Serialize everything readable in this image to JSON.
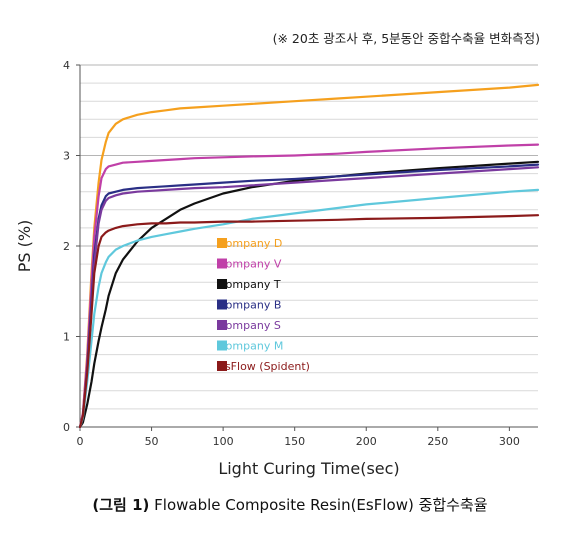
{
  "note": "(※ 20초 광조사 후, 5분동안 중합수축율 변화측정)",
  "caption": {
    "label": "(그림 1)",
    "text": "Flowable Composite Resin(EsFlow) 중합수축율"
  },
  "chart_data": {
    "type": "line",
    "title": "",
    "xlabel": "Light Curing Time(sec)",
    "ylabel": "PS (%)",
    "xlim": [
      0,
      320
    ],
    "ylim": [
      0,
      4
    ],
    "x_ticks": [
      0,
      50,
      100,
      150,
      200,
      250,
      300
    ],
    "y_ticks": [
      0,
      1,
      2,
      3,
      4
    ],
    "grid": "horizontal",
    "legend_position": "center-left",
    "x": [
      0,
      2,
      5,
      8,
      10,
      13,
      15,
      18,
      20,
      25,
      30,
      40,
      50,
      60,
      70,
      80,
      100,
      120,
      150,
      180,
      200,
      250,
      300,
      320
    ],
    "series": [
      {
        "name": "Company D",
        "color": "#f5a01e",
        "values": [
          0,
          0.15,
          0.8,
          1.7,
          2.2,
          2.7,
          2.95,
          3.15,
          3.25,
          3.35,
          3.4,
          3.45,
          3.48,
          3.5,
          3.52,
          3.53,
          3.55,
          3.57,
          3.6,
          3.63,
          3.65,
          3.7,
          3.75,
          3.78
        ]
      },
      {
        "name": "Company V",
        "color": "#c040a8",
        "values": [
          0,
          0.15,
          0.75,
          1.6,
          2.1,
          2.55,
          2.75,
          2.85,
          2.88,
          2.9,
          2.92,
          2.93,
          2.94,
          2.95,
          2.96,
          2.97,
          2.98,
          2.99,
          3.0,
          3.02,
          3.04,
          3.08,
          3.11,
          3.12
        ]
      },
      {
        "name": "Company T",
        "color": "#111111",
        "values": [
          0,
          0.05,
          0.25,
          0.5,
          0.7,
          0.95,
          1.1,
          1.3,
          1.45,
          1.7,
          1.85,
          2.05,
          2.2,
          2.3,
          2.4,
          2.47,
          2.58,
          2.65,
          2.72,
          2.77,
          2.8,
          2.86,
          2.91,
          2.93
        ]
      },
      {
        "name": "Company B",
        "color": "#2a2f85",
        "values": [
          0,
          0.12,
          0.65,
          1.4,
          1.9,
          2.3,
          2.45,
          2.55,
          2.58,
          2.6,
          2.62,
          2.64,
          2.65,
          2.66,
          2.67,
          2.68,
          2.7,
          2.72,
          2.74,
          2.77,
          2.79,
          2.84,
          2.88,
          2.9
        ]
      },
      {
        "name": "Company S",
        "color": "#7a3a9e",
        "values": [
          0,
          0.12,
          0.6,
          1.3,
          1.8,
          2.25,
          2.4,
          2.5,
          2.53,
          2.56,
          2.58,
          2.6,
          2.61,
          2.62,
          2.63,
          2.64,
          2.65,
          2.67,
          2.7,
          2.73,
          2.75,
          2.8,
          2.85,
          2.87
        ]
      },
      {
        "name": "Company M",
        "color": "#5fc8dc",
        "values": [
          0,
          0.1,
          0.5,
          0.95,
          1.25,
          1.55,
          1.7,
          1.82,
          1.88,
          1.96,
          2.0,
          2.06,
          2.1,
          2.13,
          2.16,
          2.19,
          2.24,
          2.3,
          2.36,
          2.42,
          2.46,
          2.53,
          2.6,
          2.62
        ]
      },
      {
        "name": "EsFlow (Spident)",
        "color": "#8b1a1a",
        "values": [
          0,
          0.12,
          0.6,
          1.25,
          1.7,
          2.0,
          2.1,
          2.15,
          2.17,
          2.2,
          2.22,
          2.24,
          2.25,
          2.25,
          2.26,
          2.26,
          2.27,
          2.27,
          2.28,
          2.29,
          2.3,
          2.31,
          2.33,
          2.34
        ]
      }
    ]
  }
}
